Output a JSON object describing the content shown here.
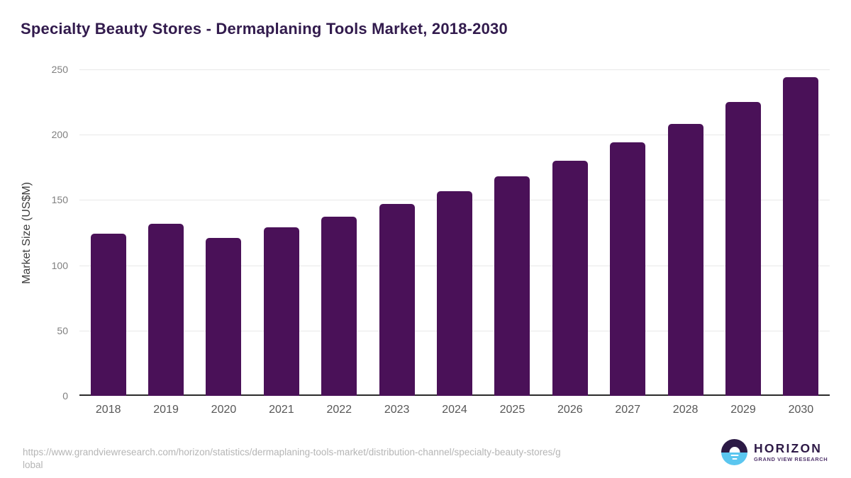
{
  "chart_data": {
    "type": "bar",
    "title": "Specialty Beauty Stores - Dermaplaning Tools Market, 2018-2030",
    "categories": [
      "2018",
      "2019",
      "2020",
      "2021",
      "2022",
      "2023",
      "2024",
      "2025",
      "2026",
      "2027",
      "2028",
      "2029",
      "2030"
    ],
    "values": [
      124,
      132,
      121,
      129,
      137,
      147,
      157,
      168,
      180,
      194,
      208,
      225,
      244
    ],
    "xlabel": "",
    "ylabel": "Market Size (US$M)",
    "ylim": [
      0,
      250
    ],
    "yticks": [
      0,
      50,
      100,
      150,
      200,
      250
    ],
    "grid": "horizontal",
    "legend": "none",
    "bar_color": "#4a1158"
  },
  "footer": {
    "source_url_lines": [
      "https://www.grandviewresearch.com/horizon/statistics/dermaplaning-tools-market/distribution-channel/specialty-beauty-stores/g",
      "lobal"
    ],
    "logo": {
      "name": "HORIZON",
      "tagline": "GRAND VIEW RESEARCH"
    }
  },
  "colors": {
    "bar": "#4a1158",
    "title_text": "#321b4d",
    "gridline": "#e8e8e8",
    "axis_line": "#2b2b2b",
    "y_tick_label": "#7f7f7f",
    "x_tick_label": "#575757",
    "url_text": "#b5b5b5",
    "logo_dark": "#2c1a45",
    "logo_blue": "#5bc6ef"
  }
}
